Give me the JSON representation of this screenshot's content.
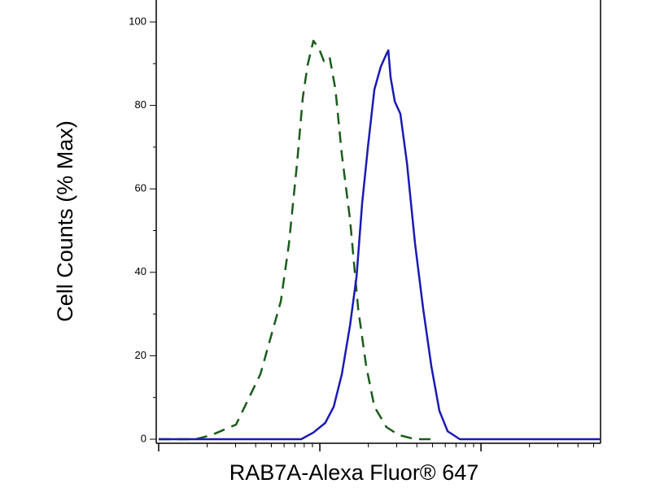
{
  "chart_data": {
    "type": "line",
    "x_label": "RAB7A-Alexa Fluor® 647",
    "y_label": "Cell Counts (% Max)",
    "xscale": "log",
    "xlim": [
      10,
      5520
    ],
    "xticks": [
      10,
      100,
      1000
    ],
    "xtick_labels": false,
    "ylim": [
      0,
      100
    ],
    "yticks": [
      0,
      20,
      40,
      60,
      80,
      100
    ],
    "series": [
      {
        "color": "#1a5c1a",
        "dashed": true,
        "x": [
          10,
          16.9,
          21.3,
          30.2,
          42.8,
          57.3,
          64.3,
          72.3,
          78.4,
          84.0,
          91.2,
          98.9,
          106,
          115,
          125,
          137,
          154,
          173,
          194,
          218,
          259,
          309,
          390,
          492
        ],
        "values": [
          0,
          0,
          1.0,
          3.5,
          15.6,
          33.1,
          46.8,
          66.3,
          81.9,
          89.7,
          95.5,
          93.6,
          90.6,
          91.6,
          83.8,
          68.2,
          52.6,
          31.2,
          17.5,
          7.8,
          2.9,
          1.0,
          0,
          0
        ]
      },
      {
        "color": "#1a1ab4",
        "dashed": false,
        "x": [
          10,
          54,
          76.6,
          91.2,
          108,
          122,
          137,
          154,
          169,
          183,
          199,
          218,
          239,
          254,
          266,
          275,
          292,
          316,
          347,
          390,
          438,
          492,
          552,
          621,
          739,
          880,
          5520
        ],
        "values": [
          0,
          0,
          0,
          1.6,
          3.9,
          7.8,
          15.6,
          27.3,
          39,
          56.5,
          70.2,
          83.8,
          89.3,
          91.6,
          93.2,
          86.7,
          80.9,
          78,
          66.3,
          46.8,
          31.2,
          17.5,
          6.8,
          1.9,
          0,
          0,
          0
        ]
      }
    ]
  }
}
